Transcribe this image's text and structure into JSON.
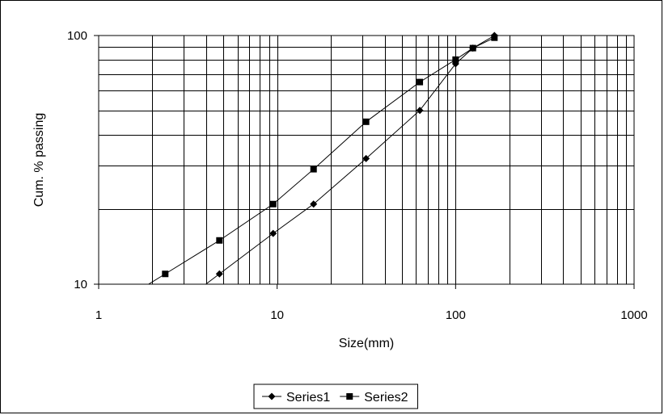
{
  "chart_data": {
    "type": "line",
    "title": "",
    "xlabel": "Size(mm)",
    "ylabel": "Cum.  % passing",
    "xscale": "log",
    "yscale": "log",
    "xlim": [
      1,
      1000
    ],
    "ylim": [
      10,
      100
    ],
    "x_tick_labels": [
      "1",
      "10",
      "100",
      "1000"
    ],
    "y_tick_labels": [
      "10",
      "100"
    ],
    "grid": true,
    "legend_position": "bottom",
    "series": [
      {
        "name": "Series1",
        "marker": "diamond",
        "color": "#000000",
        "x": [
          4.75,
          9.5,
          16,
          31.5,
          63,
          100,
          125,
          165
        ],
        "y": [
          11,
          16,
          21,
          32,
          50,
          77,
          89,
          100
        ]
      },
      {
        "name": "Series2",
        "marker": "square",
        "color": "#000000",
        "x": [
          2.36,
          4.75,
          9.5,
          16,
          31.5,
          63,
          100,
          125,
          165
        ],
        "y": [
          11,
          15,
          21,
          29,
          45,
          65,
          80,
          89,
          98
        ]
      }
    ]
  }
}
